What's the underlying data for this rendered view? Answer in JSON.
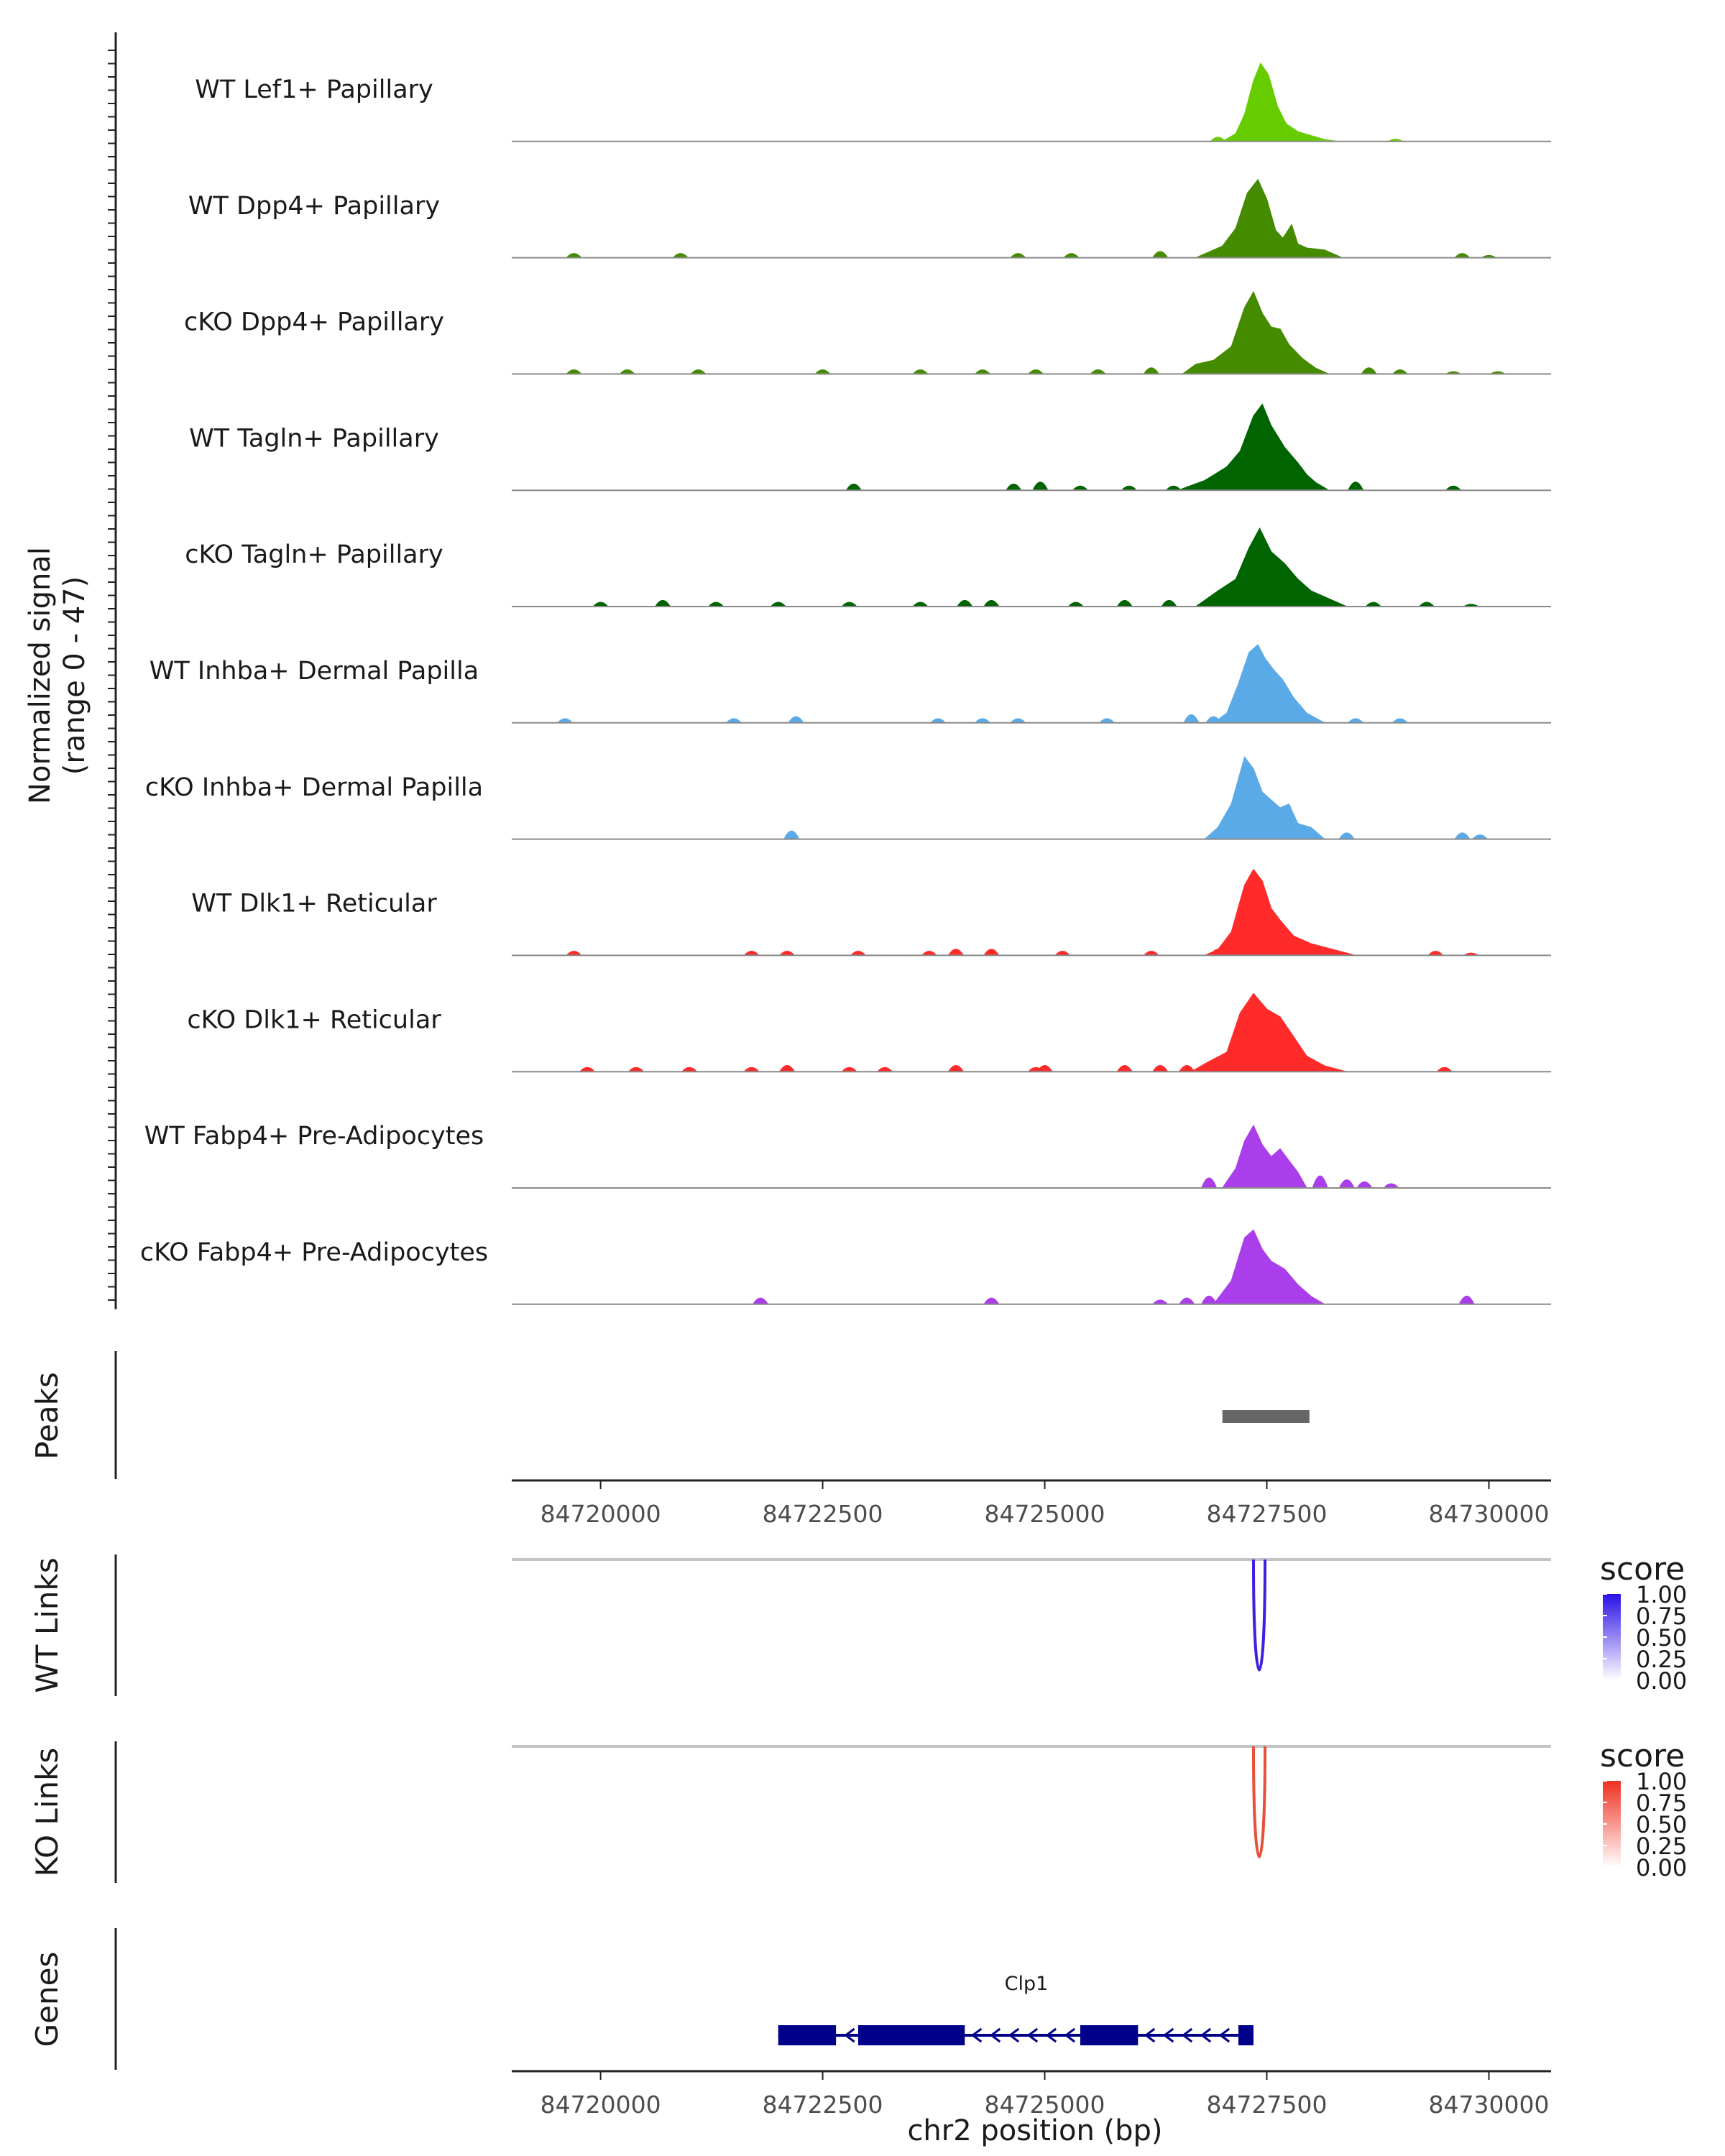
{
  "chart_data": {
    "type": "area",
    "title": "",
    "xlabel": "chr2 position (bp)",
    "xlim": [
      84719000,
      84730700
    ],
    "x_ticks": [
      "84720000",
      "84722500",
      "84725000",
      "84727500",
      "84730000"
    ],
    "x_tick_values": [
      84720000,
      84722500,
      84725000,
      84727500,
      84730000
    ],
    "coverage": {
      "ylabel_line1": "Normalized signal",
      "ylabel_line2": "(range 0 - 47)",
      "ylim": [
        0,
        47
      ],
      "tracks": [
        {
          "name": "WT Lef1+ Papillary",
          "color": "#66CC00",
          "main_peak": [
            [
              84727000,
              0
            ],
            [
              84727150,
              4
            ],
            [
              84727250,
              14
            ],
            [
              84727350,
              31
            ],
            [
              84727430,
              40
            ],
            [
              84727520,
              34
            ],
            [
              84727620,
              18
            ],
            [
              84727720,
              9
            ],
            [
              84727850,
              5
            ],
            [
              84728000,
              3
            ],
            [
              84728150,
              1
            ],
            [
              84728300,
              0
            ]
          ],
          "small_peaks": [
            [
              84726950,
              2
            ],
            [
              84728950,
              1
            ]
          ]
        },
        {
          "name": "WT Dpp4+ Papillary",
          "color": "#458B00",
          "main_peak": [
            [
              84726700,
              0
            ],
            [
              84726850,
              3
            ],
            [
              84727000,
              6
            ],
            [
              84727150,
              15
            ],
            [
              84727280,
              33
            ],
            [
              84727400,
              40
            ],
            [
              84727500,
              30
            ],
            [
              84727600,
              14
            ],
            [
              84727680,
              10
            ],
            [
              84727780,
              17
            ],
            [
              84727850,
              7
            ],
            [
              84727950,
              5
            ],
            [
              84728150,
              4
            ],
            [
              84728350,
              0
            ]
          ],
          "small_peaks": [
            [
              84719700,
              2
            ],
            [
              84720900,
              2
            ],
            [
              84724700,
              2
            ],
            [
              84725300,
              2
            ],
            [
              84726300,
              3
            ],
            [
              84729700,
              2
            ],
            [
              84730000,
              1
            ]
          ]
        },
        {
          "name": "cKO Dpp4+ Papillary",
          "color": "#458B00",
          "main_peak": [
            [
              84726550,
              0
            ],
            [
              84726700,
              5
            ],
            [
              84726900,
              7
            ],
            [
              84727100,
              14
            ],
            [
              84727250,
              34
            ],
            [
              84727350,
              42
            ],
            [
              84727450,
              31
            ],
            [
              84727550,
              24
            ],
            [
              84727650,
              23
            ],
            [
              84727750,
              15
            ],
            [
              84727900,
              8
            ],
            [
              84728050,
              3
            ],
            [
              84728200,
              0
            ]
          ],
          "small_peaks": [
            [
              84719700,
              2
            ],
            [
              84720300,
              2
            ],
            [
              84721100,
              2
            ],
            [
              84722500,
              2
            ],
            [
              84723600,
              2
            ],
            [
              84724300,
              2
            ],
            [
              84724900,
              2
            ],
            [
              84725600,
              2
            ],
            [
              84726200,
              3
            ],
            [
              84728650,
              3
            ],
            [
              84729000,
              2
            ],
            [
              84729600,
              1
            ],
            [
              84730100,
              1
            ]
          ]
        },
        {
          "name": "WT Tagln+ Papillary",
          "color": "#006400",
          "main_peak": [
            [
              84726500,
              0
            ],
            [
              84726800,
              5
            ],
            [
              84727050,
              12
            ],
            [
              84727200,
              20
            ],
            [
              84727350,
              38
            ],
            [
              84727450,
              44
            ],
            [
              84727550,
              33
            ],
            [
              84727700,
              22
            ],
            [
              84727850,
              14
            ],
            [
              84727950,
              8
            ],
            [
              84728050,
              4
            ],
            [
              84728200,
              0
            ]
          ],
          "small_peaks": [
            [
              84722850,
              3
            ],
            [
              84724650,
              3
            ],
            [
              84724950,
              4
            ],
            [
              84725400,
              2
            ],
            [
              84725950,
              2
            ],
            [
              84726450,
              2
            ],
            [
              84728500,
              4
            ],
            [
              84729600,
              2
            ]
          ]
        },
        {
          "name": "cKO Tagln+ Papillary",
          "color": "#006400",
          "main_peak": [
            [
              84726700,
              0
            ],
            [
              84726950,
              8
            ],
            [
              84727150,
              14
            ],
            [
              84727300,
              30
            ],
            [
              84727420,
              40
            ],
            [
              84727550,
              28
            ],
            [
              84727700,
              22
            ],
            [
              84727850,
              14
            ],
            [
              84728000,
              8
            ],
            [
              84728200,
              4
            ],
            [
              84728400,
              0
            ]
          ],
          "small_peaks": [
            [
              84720000,
              2
            ],
            [
              84720700,
              3
            ],
            [
              84721300,
              2
            ],
            [
              84722000,
              2
            ],
            [
              84722800,
              2
            ],
            [
              84723600,
              2
            ],
            [
              84724100,
              3
            ],
            [
              84724400,
              3
            ],
            [
              84725350,
              2
            ],
            [
              84725900,
              3
            ],
            [
              84726400,
              3
            ],
            [
              84728700,
              2
            ],
            [
              84729300,
              2
            ],
            [
              84729800,
              1
            ]
          ]
        },
        {
          "name": "WT Inhba+ Dermal Papilla",
          "color": "#5BAAE8",
          "main_peak": [
            [
              84726900,
              0
            ],
            [
              84727050,
              5
            ],
            [
              84727180,
              20
            ],
            [
              84727300,
              36
            ],
            [
              84727400,
              40
            ],
            [
              84727480,
              33
            ],
            [
              84727580,
              27
            ],
            [
              84727680,
              22
            ],
            [
              84727800,
              13
            ],
            [
              84727950,
              5
            ],
            [
              84728150,
              0
            ]
          ],
          "small_peaks": [
            [
              84719600,
              2
            ],
            [
              84721500,
              2
            ],
            [
              84722200,
              3
            ],
            [
              84723800,
              2
            ],
            [
              84724300,
              2
            ],
            [
              84724700,
              2
            ],
            [
              84725700,
              2
            ],
            [
              84726650,
              4
            ],
            [
              84726900,
              3
            ],
            [
              84728500,
              2
            ],
            [
              84729000,
              2
            ]
          ]
        },
        {
          "name": "cKO Inhba+ Dermal Papilla",
          "color": "#5BAAE8",
          "main_peak": [
            [
              84726800,
              0
            ],
            [
              84726950,
              6
            ],
            [
              84727100,
              18
            ],
            [
              84727250,
              42
            ],
            [
              84727350,
              36
            ],
            [
              84727450,
              24
            ],
            [
              84727550,
              20
            ],
            [
              84727650,
              16
            ],
            [
              84727750,
              18
            ],
            [
              84727850,
              8
            ],
            [
              84728000,
              6
            ],
            [
              84728150,
              0
            ]
          ],
          "small_peaks": [
            [
              84722150,
              4
            ],
            [
              84728400,
              3
            ],
            [
              84729700,
              3
            ],
            [
              84729900,
              2
            ]
          ]
        },
        {
          "name": "WT Dlk1+ Reticular",
          "color": "#FF2A2A",
          "main_peak": [
            [
              84726800,
              0
            ],
            [
              84726950,
              3
            ],
            [
              84727100,
              12
            ],
            [
              84727250,
              36
            ],
            [
              84727350,
              44
            ],
            [
              84727450,
              38
            ],
            [
              84727550,
              24
            ],
            [
              84727650,
              18
            ],
            [
              84727800,
              10
            ],
            [
              84728000,
              6
            ],
            [
              84728250,
              3
            ],
            [
              84728500,
              0
            ]
          ],
          "small_peaks": [
            [
              84719700,
              2
            ],
            [
              84721700,
              2
            ],
            [
              84722100,
              2
            ],
            [
              84722900,
              2
            ],
            [
              84723700,
              2
            ],
            [
              84724000,
              3
            ],
            [
              84724400,
              3
            ],
            [
              84725200,
              2
            ],
            [
              84726200,
              2
            ],
            [
              84726950,
              3
            ],
            [
              84729400,
              2
            ],
            [
              84729800,
              1
            ]
          ]
        },
        {
          "name": "cKO Dlk1+ Reticular",
          "color": "#FF2A2A",
          "main_peak": [
            [
              84726650,
              0
            ],
            [
              84726800,
              4
            ],
            [
              84727050,
              10
            ],
            [
              84727200,
              30
            ],
            [
              84727350,
              40
            ],
            [
              84727500,
              32
            ],
            [
              84727650,
              28
            ],
            [
              84727800,
              18
            ],
            [
              84727950,
              8
            ],
            [
              84728150,
              3
            ],
            [
              84728400,
              0
            ]
          ],
          "small_peaks": [
            [
              84719850,
              2
            ],
            [
              84720400,
              2
            ],
            [
              84721000,
              2
            ],
            [
              84721700,
              2
            ],
            [
              84722100,
              3
            ],
            [
              84722800,
              2
            ],
            [
              84723200,
              2
            ],
            [
              84724000,
              3
            ],
            [
              84724900,
              2
            ],
            [
              84725000,
              3
            ],
            [
              84725900,
              3
            ],
            [
              84726300,
              3
            ],
            [
              84726600,
              3
            ],
            [
              84729500,
              2
            ]
          ]
        },
        {
          "name": "WT Fabp4+ Pre-Adipocytes",
          "color": "#AA3EEA",
          "main_peak": [
            [
              84727000,
              0
            ],
            [
              84727150,
              10
            ],
            [
              84727250,
              24
            ],
            [
              84727350,
              32
            ],
            [
              84727450,
              22
            ],
            [
              84727550,
              16
            ],
            [
              84727650,
              20
            ],
            [
              84727750,
              14
            ],
            [
              84727850,
              8
            ],
            [
              84727950,
              0
            ]
          ],
          "small_peaks": [
            [
              84726850,
              5
            ],
            [
              84728100,
              6
            ],
            [
              84728400,
              4
            ],
            [
              84728600,
              3
            ],
            [
              84728900,
              2
            ]
          ]
        },
        {
          "name": "cKO Fabp4+ Pre-Adipocytes",
          "color": "#AA3EEA",
          "main_peak": [
            [
              84726900,
              0
            ],
            [
              84727100,
              12
            ],
            [
              84727250,
              34
            ],
            [
              84727350,
              38
            ],
            [
              84727450,
              28
            ],
            [
              84727550,
              22
            ],
            [
              84727700,
              18
            ],
            [
              84727850,
              10
            ],
            [
              84728000,
              4
            ],
            [
              84728150,
              0
            ]
          ],
          "small_peaks": [
            [
              84721800,
              3
            ],
            [
              84724400,
              3
            ],
            [
              84726300,
              2
            ],
            [
              84726600,
              3
            ],
            [
              84726850,
              4
            ],
            [
              84729750,
              4
            ]
          ]
        }
      ]
    },
    "peaks": {
      "label": "Peaks",
      "regions": [
        [
          84727000,
          84727980
        ]
      ]
    },
    "links": [
      {
        "label": "WT Links",
        "color": "#4020E0",
        "score": 1.0,
        "start": 84727350,
        "end": 84727480
      },
      {
        "label": "KO Links",
        "color": "#E8503A",
        "score": 1.0,
        "start": 84727350,
        "end": 84727480
      }
    ],
    "legends": [
      {
        "title": "score",
        "ticks": [
          "1.00",
          "0.75",
          "0.50",
          "0.25",
          "0.00"
        ],
        "low_color": "#FFFFFF",
        "high_color": "#2A10E6"
      },
      {
        "title": "score",
        "ticks": [
          "1.00",
          "0.75",
          "0.50",
          "0.25",
          "0.00"
        ],
        "low_color": "#FFFFFF",
        "high_color": "#F03020"
      }
    ],
    "genes": {
      "label": "Genes",
      "name": "Clp1",
      "color": "#00008B",
      "start": 84722000,
      "end": 84727350,
      "exons": [
        [
          84722000,
          84722650
        ],
        [
          84722900,
          84724100
        ],
        [
          84725400,
          84726050
        ],
        [
          84727180,
          84727350
        ]
      ],
      "arrow_ranges": [
        [
          84724150,
          84725350
        ],
        [
          84726100,
          84727150
        ]
      ],
      "small_arrow_at": 84722800
    }
  }
}
